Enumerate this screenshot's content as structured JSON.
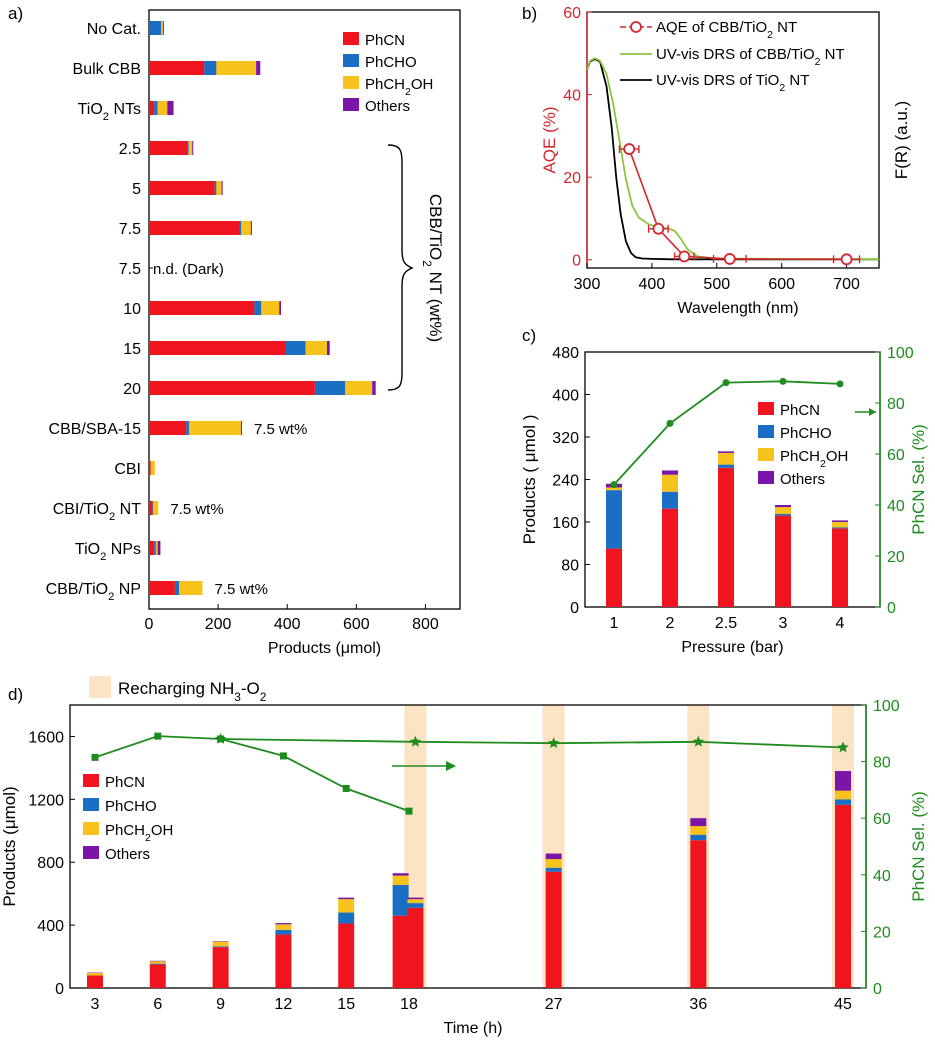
{
  "colors": {
    "phcn": "#f0141e",
    "phcho": "#1a6fc4",
    "phch2oh": "#f7c21c",
    "others": "#7b15a8",
    "aqe": "#d6262e",
    "drs_cbb": "#8cc63f",
    "drs_tio2": "#000000",
    "sel": "#1e8c1e",
    "recharge": "#fbe3c4"
  },
  "chart_data": [
    {
      "panel": "a)",
      "type": "bar",
      "orientation": "horizontal",
      "stacked": true,
      "categories": [
        "No Cat.",
        "Bulk CBB",
        "TiO₂ NTs",
        "2.5",
        "5",
        "7.5",
        "7.5",
        "10",
        "15",
        "20",
        "CBB/SBA-15",
        "CBI",
        "CBI/TiO₂ NT",
        "TiO₂ NPs",
        "CBB/TiO₂ NP"
      ],
      "series": [
        {
          "name": "PhCN",
          "color": "#f0141e",
          "values": [
            0,
            160,
            15,
            110,
            190,
            262,
            0,
            305,
            395,
            480,
            108,
            5,
            10,
            15,
            75
          ]
        },
        {
          "name": "PhCHO",
          "color": "#1a6fc4",
          "values": [
            35,
            35,
            10,
            5,
            5,
            5,
            0,
            20,
            58,
            88,
            8,
            0,
            2,
            5,
            12
          ]
        },
        {
          "name": "PhCH₂OH",
          "color": "#f7c21c",
          "values": [
            5,
            115,
            28,
            10,
            15,
            28,
            0,
            52,
            62,
            78,
            150,
            12,
            15,
            5,
            68
          ]
        },
        {
          "name": "Others",
          "color": "#7b15a8",
          "values": [
            3,
            12,
            18,
            3,
            3,
            3,
            0,
            5,
            8,
            10,
            3,
            0,
            0,
            8,
            0
          ]
        }
      ],
      "annotations": [
        {
          "row": 6,
          "text": "n.d.  (Dark)"
        },
        {
          "row": 10,
          "text": "7.5 wt%"
        },
        {
          "row": 12,
          "text": "7.5 wt%"
        },
        {
          "row": 14,
          "text": "7.5 wt%"
        }
      ],
      "group_label": "CBB/TiO₂ NT (wt%)",
      "xlabel": "Products (μmol)",
      "xlim": [
        0,
        900
      ],
      "xticks": [
        0,
        200,
        400,
        600,
        800
      ],
      "legend_position": "top-right"
    },
    {
      "panel": "b)",
      "type": "line",
      "series": [
        {
          "name": "AQE of CBB/TiO₂ NT",
          "color": "#d6262e",
          "x": [
            365,
            410,
            450,
            520,
            700
          ],
          "y": [
            26.8,
            7.5,
            0.8,
            0.2,
            0.1
          ],
          "xerr": [
            15,
            15,
            15,
            25,
            20
          ]
        },
        {
          "name": "UV-vis DRS of CBB/TiO₂ NT",
          "color": "#8cc63f",
          "x": [
            300,
            305,
            312,
            320,
            330,
            340,
            350,
            360,
            370,
            380,
            395,
            410,
            425,
            435,
            445,
            455,
            470,
            500,
            600,
            750
          ],
          "y": [
            46,
            48.2,
            48.8,
            48.2,
            45,
            38,
            29,
            19.5,
            13,
            10.2,
            8.6,
            7.8,
            7.6,
            7,
            5,
            2.5,
            0.8,
            0.3,
            0.2,
            0.1
          ]
        },
        {
          "name": "UV-vis DRS of TiO₂ NT",
          "color": "#000000",
          "x": [
            300,
            305,
            312,
            320,
            330,
            338,
            345,
            352,
            360,
            368,
            375,
            385,
            400,
            430,
            500,
            750
          ],
          "y": [
            46,
            48,
            48.6,
            48,
            42,
            32,
            20,
            11,
            4.5,
            1.6,
            0.6,
            0.3,
            0.2,
            0.1,
            0.1,
            0.1
          ]
        }
      ],
      "xlabel": "Wavelength (nm)",
      "ylabel": "AQE (%)",
      "y2label": "F(R) (a.u.)",
      "xlim": [
        300,
        750
      ],
      "ylim": [
        -2,
        60
      ],
      "xticks": [
        300,
        400,
        500,
        600,
        700
      ],
      "yticks": [
        0,
        20,
        40,
        60
      ],
      "legend_position": "top-right"
    },
    {
      "panel": "c)",
      "type": "bar",
      "stacked": true,
      "categories": [
        "1",
        "2",
        "2.5",
        "3",
        "4"
      ],
      "series": [
        {
          "name": "PhCN",
          "color": "#f0141e",
          "values": [
            110,
            185,
            262,
            172,
            148
          ]
        },
        {
          "name": "PhCHO",
          "color": "#1a6fc4",
          "values": [
            110,
            32,
            6,
            3,
            2
          ]
        },
        {
          "name": "PhCH₂OH",
          "color": "#f7c21c",
          "values": [
            5,
            32,
            22,
            13,
            10
          ]
        },
        {
          "name": "Others",
          "color": "#7b15a8",
          "values": [
            7,
            8,
            3,
            4,
            3
          ]
        }
      ],
      "line_series": {
        "name": "PhCN Sel.",
        "color": "#1e8c1e",
        "values": [
          48,
          72,
          88,
          88.5,
          87.5
        ]
      },
      "xlabel": "Pressure (bar)",
      "ylabel": "Products ( μmol )",
      "y2label": "PhCN Sel. (%)",
      "ylim": [
        0,
        480
      ],
      "y2lim": [
        0,
        100
      ],
      "yticks": [
        0,
        80,
        160,
        240,
        320,
        400,
        480
      ],
      "y2ticks": [
        0,
        20,
        40,
        60,
        80,
        100
      ],
      "legend_position": "top-right"
    },
    {
      "panel": "d)",
      "type": "bar",
      "stacked": true,
      "categories": [
        "3",
        "6",
        "9",
        "12",
        "15",
        "18",
        "18",
        "27",
        "36",
        "45"
      ],
      "x": [
        3,
        6,
        9,
        12,
        15,
        17.6,
        18.4,
        27,
        36,
        45
      ],
      "series": [
        {
          "name": "PhCN",
          "color": "#f0141e",
          "values": [
            80,
            150,
            260,
            340,
            410,
            460,
            510,
            740,
            940,
            1165
          ]
        },
        {
          "name": "PhCHO",
          "color": "#1a6fc4",
          "values": [
            0,
            5,
            5,
            30,
            70,
            195,
            30,
            25,
            35,
            35
          ]
        },
        {
          "name": "PhCH₂OH",
          "color": "#f7c21c",
          "values": [
            15,
            15,
            30,
            35,
            85,
            60,
            25,
            55,
            55,
            55
          ]
        },
        {
          "name": "Others",
          "color": "#7b15a8",
          "values": [
            3,
            3,
            3,
            8,
            10,
            15,
            10,
            35,
            50,
            125
          ]
        }
      ],
      "line_series": {
        "name": "PhCN Sel.",
        "color": "#1e8c1e",
        "segment1": {
          "x": [
            3,
            6,
            9,
            12,
            15,
            18
          ],
          "y": [
            81.5,
            89,
            88,
            82,
            70.5,
            62.5
          ]
        },
        "segment2": {
          "x": [
            9,
            18.4,
            27,
            36,
            45
          ],
          "y": [
            88,
            87,
            86.5,
            87,
            85
          ]
        }
      },
      "recharge_bands_x": [
        18.4,
        27,
        36,
        45
      ],
      "recharge_label": "Recharging NH₃-O₂",
      "xlabel": "Time (h)",
      "ylabel": "Products (μmol)",
      "y2label": "PhCN Sel. (%)",
      "ylim": [
        0,
        1800
      ],
      "y2lim": [
        0,
        100
      ],
      "yticks": [
        0,
        400,
        800,
        1200,
        1600
      ],
      "y2ticks": [
        0,
        20,
        40,
        60,
        80,
        100
      ],
      "legend_position": "top-left"
    }
  ]
}
